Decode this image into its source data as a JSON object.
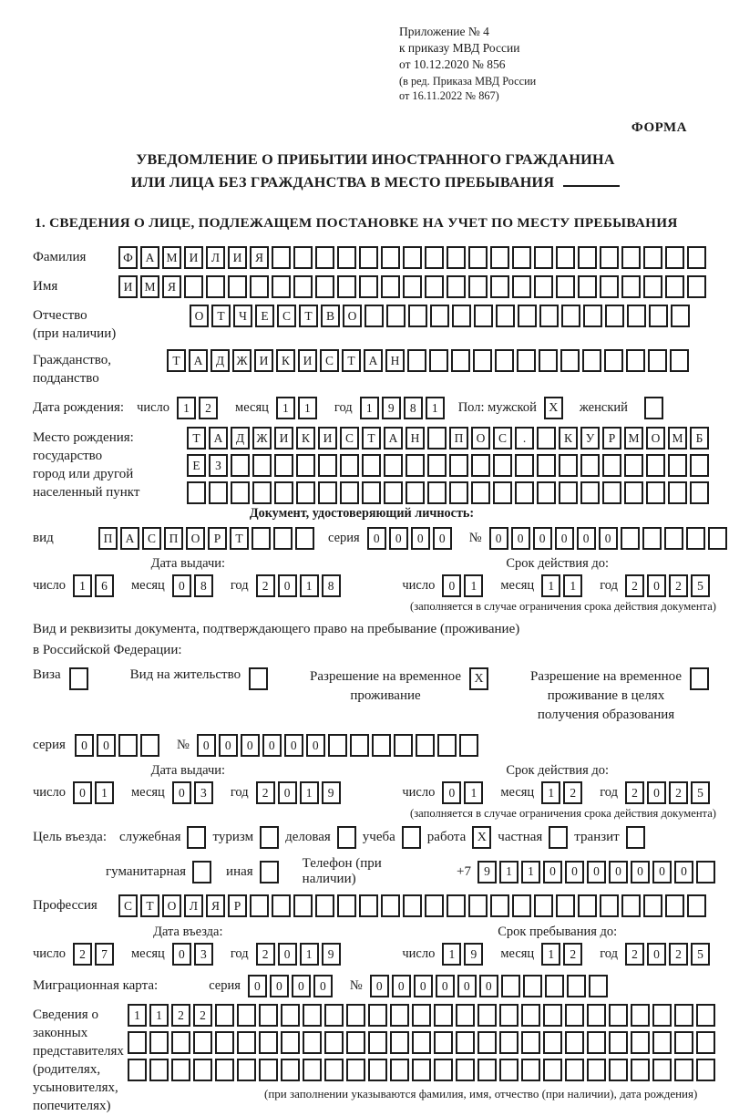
{
  "ink": "#1b1b1b",
  "paper": "#ffffff",
  "header": {
    "line1": "Приложение № 4",
    "line2": "к приказу МВД России",
    "line3": "от 10.12.2020 № 856",
    "line4": "(в ред. Приказа МВД России",
    "line5": "от 16.11.2022 № 867)",
    "form": "ФОРМА"
  },
  "title": {
    "line1": "УВЕДОМЛЕНИЕ О ПРИБЫТИИ ИНОСТРАННОГО ГРАЖДАНИНА",
    "line2": "ИЛИ ЛИЦА БЕЗ ГРАЖДАНСТВА В МЕСТО ПРЕБЫВАНИЯ"
  },
  "section1_heading": "1. СВЕДЕНИЯ О ЛИЦЕ, ПОДЛЕЖАЩЕМ ПОСТАНОВКЕ НА УЧЕТ ПО МЕСТУ ПРЕБЫВАНИЯ",
  "labels": {
    "day": "число",
    "month": "месяц",
    "year": "год",
    "series": "серия",
    "number": "№"
  },
  "surname": {
    "label": "Фамилия",
    "cells": {
      "chars": "ФАМИЛИЯ",
      "count": 27
    }
  },
  "firstname": {
    "label": "Имя",
    "cells": {
      "chars": "ИМЯ",
      "count": 27
    }
  },
  "patronymic": {
    "label1": "Отчество",
    "label2": "(при наличии)",
    "cells": {
      "chars": "ОТЧЕСТВО",
      "count": 23
    }
  },
  "citizenship": {
    "label1": "Гражданство,",
    "label2": "подданство",
    "cells": {
      "chars": "ТАДЖИКИСТАН",
      "count": 24
    }
  },
  "birthdate": {
    "label": "Дата рождения:",
    "day": {
      "chars": "12",
      "count": 2
    },
    "month": {
      "chars": "11",
      "count": 2
    },
    "year": {
      "chars": "1981",
      "count": 4
    },
    "sex_label": "Пол:",
    "male_label": "мужской",
    "male_checked": true,
    "female_label": "женский",
    "female_checked": false
  },
  "birthplace": {
    "label1": "Место рождения:",
    "label2": "государство",
    "label3": "город или другой",
    "label4": "населенный пункт",
    "row1": {
      "chars": "ТАДЖИКИСТАН ПОС. КУРМОМБ",
      "count": 24
    },
    "row2": {
      "chars": "ЕЗ",
      "count": 24
    },
    "row3": {
      "chars": "",
      "count": 24
    }
  },
  "identity_doc": {
    "heading": "Документ, удостоверяющий личность:",
    "kind_label": "вид",
    "kind": {
      "chars": "ПАСПОРТ",
      "count": 10
    },
    "series": {
      "chars": "0000",
      "count": 4
    },
    "number": {
      "chars": "000000",
      "count": 11
    },
    "issue_heading": "Дата выдачи:",
    "issue": {
      "day": {
        "chars": "16",
        "count": 2
      },
      "month": {
        "chars": "08",
        "count": 2
      },
      "year": {
        "chars": "2018",
        "count": 4
      }
    },
    "valid_heading": "Срок действия до:",
    "valid": {
      "day": {
        "chars": "01",
        "count": 2
      },
      "month": {
        "chars": "11",
        "count": 2
      },
      "year": {
        "chars": "2025",
        "count": 4
      }
    },
    "valid_caption": "(заполняется в случае ограничения срока действия документа)"
  },
  "residence_doc": {
    "line1": "Вид и реквизиты документа, подтверждающего право на пребывание (проживание)",
    "line2": "в Российской Федерации:",
    "visa": {
      "label": "Виза",
      "checked": false
    },
    "residence_permit": {
      "label": "Вид на жительство",
      "checked": false
    },
    "temp_permit": {
      "label1": "Разрешение на временное",
      "label2": "проживание",
      "checked": true
    },
    "temp_permit_edu": {
      "label1": "Разрешение на временное",
      "label2": "проживание в целях",
      "label3": "получения образования",
      "checked": false
    },
    "series": {
      "chars": "00",
      "count": 4
    },
    "number": {
      "chars": "000000",
      "count": 13
    },
    "issue_heading": "Дата выдачи:",
    "issue": {
      "day": {
        "chars": "01",
        "count": 2
      },
      "month": {
        "chars": "03",
        "count": 2
      },
      "year": {
        "chars": "2019",
        "count": 4
      }
    },
    "valid_heading": "Срок действия до:",
    "valid": {
      "day": {
        "chars": "01",
        "count": 2
      },
      "month": {
        "chars": "12",
        "count": 2
      },
      "year": {
        "chars": "2025",
        "count": 4
      }
    },
    "valid_caption": "(заполняется в случае ограничения срока действия документа)"
  },
  "purpose": {
    "label": "Цель въезда:",
    "options": [
      {
        "label": "служебная",
        "checked": false
      },
      {
        "label": "туризм",
        "checked": false
      },
      {
        "label": "деловая",
        "checked": false
      },
      {
        "label": "учеба",
        "checked": false
      },
      {
        "label": "работа",
        "checked": true
      },
      {
        "label": "частная",
        "checked": false
      },
      {
        "label": "транзит",
        "checked": false
      },
      {
        "label": "гуманитарная",
        "checked": false
      },
      {
        "label": "иная",
        "checked": false
      }
    ],
    "phone_label": "Телефон (при наличии)",
    "phone_prefix": "+7",
    "phone": {
      "chars": "9110000000",
      "count": 11
    }
  },
  "profession": {
    "label": "Профессия",
    "cells": {
      "chars": "СТОЛЯР",
      "count": 27
    }
  },
  "entry": {
    "date_heading": "Дата въезда:",
    "date": {
      "day": {
        "chars": "27",
        "count": 2
      },
      "month": {
        "chars": "03",
        "count": 2
      },
      "year": {
        "chars": "2019",
        "count": 4
      }
    },
    "stay_heading": "Срок пребывания до:",
    "stay": {
      "day": {
        "chars": "19",
        "count": 2
      },
      "month": {
        "chars": "12",
        "count": 2
      },
      "year": {
        "chars": "2025",
        "count": 4
      }
    }
  },
  "migration_card": {
    "label": "Миграционная карта:",
    "series": {
      "chars": "0000",
      "count": 4
    },
    "number": {
      "chars": "000000",
      "count": 11
    }
  },
  "guardians": {
    "label1": "Сведения о",
    "label2": "законных",
    "label3": "представителях",
    "label4": "(родителях,",
    "label5": "усыновителях,",
    "label6": "попечителях)",
    "row1": {
      "chars": "1122",
      "count": 27
    },
    "row2": {
      "chars": "",
      "count": 27
    },
    "row3": {
      "chars": "",
      "count": 27
    },
    "caption": "(при заполнении указываются фамилия, имя, отчество (при наличии), дата рождения)"
  }
}
